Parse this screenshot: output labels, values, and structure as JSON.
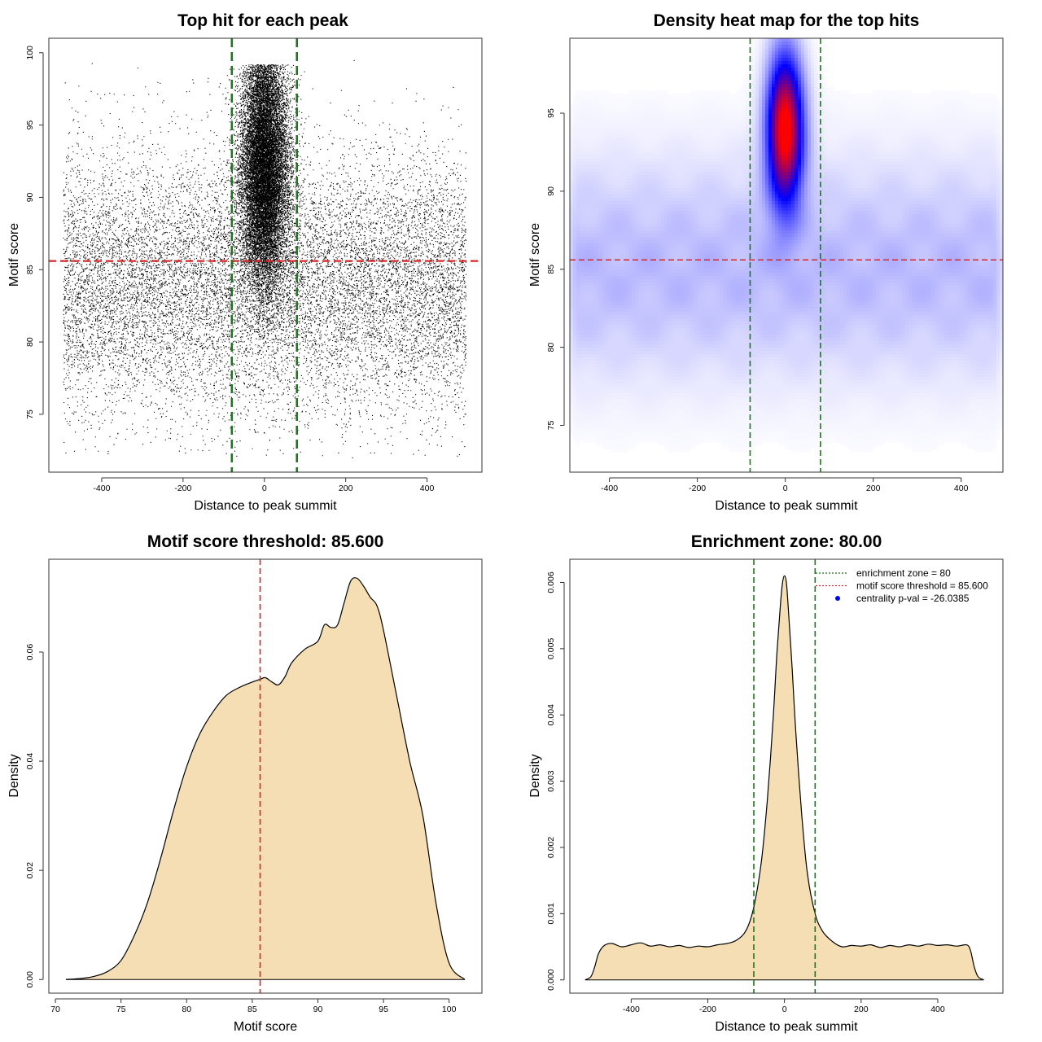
{
  "colors": {
    "threshold": "#d62728",
    "zone": "#1a7a1a",
    "points": "#000000",
    "fill": "#f5deb3",
    "heat_low": "#ffffff",
    "heat_mid": "#0000ff",
    "heat_high": "#ff0000",
    "legend_marker": "#0000ff"
  },
  "chart_data": [
    {
      "type": "scatter",
      "title": "Top hit for each peak",
      "xlabel": "Distance to peak summit",
      "ylabel": "Motif score",
      "xlim": [
        -530,
        535
      ],
      "ylim": [
        71,
        101
      ],
      "xticks": [
        -400,
        -200,
        0,
        200,
        400
      ],
      "yticks": [
        75,
        80,
        85,
        90,
        95,
        100
      ],
      "grid": false,
      "threshold_y": 85.6,
      "zone_x": [
        -80,
        80
      ],
      "background": {
        "x_range": [
          -495,
          495
        ],
        "y_peak": 84,
        "y_sd": 4.5,
        "y_min": 72,
        "y_max": 99.6
      },
      "central": {
        "x_center": 0,
        "x_sd": 30,
        "y_center": 92,
        "y_sd": 4,
        "y_max": 99.2
      }
    },
    {
      "type": "heatmap",
      "title": "Density heat map for the top hits",
      "xlabel": "Distance to peak summit",
      "ylabel": "Motif score",
      "xlim": [
        -490,
        495
      ],
      "ylim": [
        72,
        99.8
      ],
      "xticks": [
        -400,
        -200,
        0,
        200,
        400
      ],
      "yticks": [
        75,
        80,
        85,
        90,
        95
      ],
      "grid": false,
      "threshold_y": 85.6,
      "zone_x": [
        -80,
        80
      ],
      "hotspot": {
        "x": 0,
        "y": 94,
        "x_sd": 28,
        "y_sd": 3.3
      }
    },
    {
      "type": "area",
      "title": "Motif score threshold: 85.600",
      "xlabel": "Motif score",
      "ylabel": "Density",
      "xlim": [
        69.5,
        102.5
      ],
      "ylim": [
        -0.0025,
        0.077
      ],
      "xticks": [
        70,
        75,
        80,
        85,
        90,
        95,
        100
      ],
      "yticks": [
        0.0,
        0.02,
        0.04,
        0.06
      ],
      "ytick_labels": [
        "0.00",
        "0.02",
        "0.04",
        "0.06"
      ],
      "grid": false,
      "threshold_x": 85.6,
      "x": [
        70.8,
        72,
        73,
        74,
        75,
        76,
        77,
        78,
        79,
        80,
        81,
        82,
        83,
        84,
        85,
        85.6,
        86,
        86.5,
        87,
        87.5,
        88,
        89,
        90,
        90.5,
        91,
        91.5,
        92,
        92.5,
        93,
        93.5,
        94,
        94.5,
        95,
        96,
        97,
        98,
        99,
        100,
        101.2
      ],
      "y": [
        0.0,
        0.0002,
        0.0006,
        0.0015,
        0.0035,
        0.008,
        0.014,
        0.022,
        0.031,
        0.039,
        0.045,
        0.049,
        0.052,
        0.0535,
        0.0545,
        0.055,
        0.0553,
        0.0545,
        0.054,
        0.0555,
        0.058,
        0.0605,
        0.062,
        0.065,
        0.0645,
        0.065,
        0.069,
        0.073,
        0.0735,
        0.072,
        0.07,
        0.0685,
        0.064,
        0.052,
        0.04,
        0.03,
        0.014,
        0.003,
        0.0
      ]
    },
    {
      "type": "area",
      "title": "Enrichment zone: 80.00",
      "xlabel": "Distance to peak summit",
      "ylabel": "Density",
      "xlim": [
        -560,
        570
      ],
      "ylim": [
        -0.0002,
        0.00635
      ],
      "xticks": [
        -400,
        -200,
        0,
        200,
        400
      ],
      "yticks": [
        0.0,
        0.001,
        0.002,
        0.003,
        0.004,
        0.005,
        0.006
      ],
      "ytick_labels": [
        "0.000",
        "0.001",
        "0.002",
        "0.003",
        "0.004",
        "0.005",
        "0.006"
      ],
      "grid": false,
      "zone_x": [
        -80,
        80
      ],
      "x": [
        -520,
        -505,
        -495,
        -485,
        -470,
        -450,
        -425,
        -400,
        -375,
        -350,
        -325,
        -300,
        -275,
        -250,
        -225,
        -200,
        -175,
        -150,
        -125,
        -100,
        -80,
        -60,
        -45,
        -30,
        -20,
        -10,
        -5,
        0,
        5,
        10,
        20,
        30,
        45,
        60,
        80,
        100,
        125,
        150,
        175,
        200,
        225,
        250,
        275,
        300,
        325,
        350,
        375,
        400,
        425,
        450,
        475,
        485,
        495,
        505,
        520
      ],
      "y": [
        0.0,
        5e-05,
        0.0002,
        0.0004,
        0.00052,
        0.00055,
        0.0005,
        0.00053,
        0.00056,
        0.00051,
        0.00053,
        0.0005,
        0.00052,
        0.00049,
        0.00051,
        0.0005,
        0.00053,
        0.00055,
        0.0006,
        0.00075,
        0.0011,
        0.0018,
        0.0027,
        0.0039,
        0.0049,
        0.0057,
        0.006,
        0.0061,
        0.006,
        0.0056,
        0.0047,
        0.0037,
        0.0025,
        0.0016,
        0.001,
        0.00073,
        0.00058,
        0.0005,
        0.00052,
        0.00051,
        0.00053,
        0.00049,
        0.00052,
        0.0005,
        0.00053,
        0.00051,
        0.00054,
        0.00052,
        0.00053,
        0.00051,
        0.00053,
        0.00045,
        0.0002,
        5e-05,
        0.0
      ],
      "legend": {
        "position": "top-right",
        "entries": [
          {
            "label": "enrichment zone = 80",
            "style": "dotted-line",
            "color": "#1a7a1a"
          },
          {
            "label": "motif score threshold = 85.600",
            "style": "dotted-line",
            "color": "#d62728"
          },
          {
            "label": "centrality p-val = -26.0385",
            "style": "point",
            "color": "#0000ff"
          }
        ]
      }
    }
  ]
}
